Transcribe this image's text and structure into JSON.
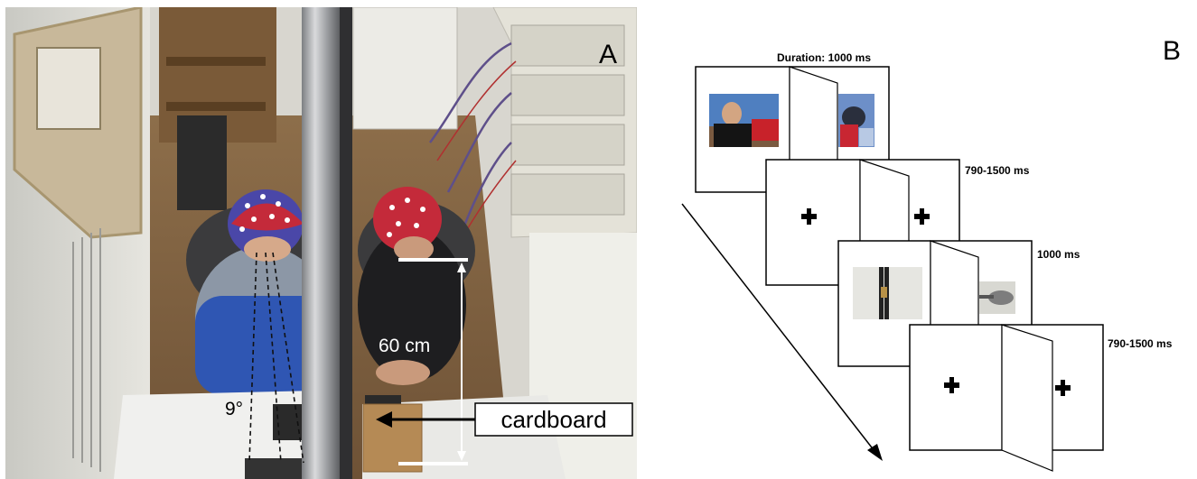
{
  "panel_a": {
    "letter": "A",
    "distance_label": "60 cm",
    "angle_label": "9°",
    "cardboard_label": "cardboard",
    "photo_icon": "eeg-experiment-photo"
  },
  "panel_b": {
    "letter": "B",
    "screens": [
      {
        "duration": "Duration: 1000 ms",
        "content": "images"
      },
      {
        "duration": "790-1500 ms",
        "content": "fixation-cross"
      },
      {
        "duration": "1000 ms",
        "content": "images"
      },
      {
        "duration": "790-1500 ms",
        "content": "fixation-cross"
      }
    ]
  }
}
